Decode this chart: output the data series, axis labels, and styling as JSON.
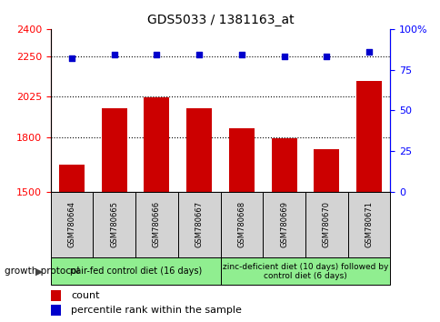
{
  "title": "GDS5033 / 1381163_at",
  "samples": [
    "GSM780664",
    "GSM780665",
    "GSM780666",
    "GSM780667",
    "GSM780668",
    "GSM780669",
    "GSM780670",
    "GSM780671"
  ],
  "counts": [
    1650,
    1960,
    2020,
    1960,
    1850,
    1795,
    1735,
    2110
  ],
  "percentiles": [
    82,
    84,
    84,
    84,
    84,
    83,
    83,
    86
  ],
  "ylim_left": [
    1500,
    2400
  ],
  "ylim_right": [
    0,
    100
  ],
  "yticks_left": [
    1500,
    1800,
    2025,
    2250,
    2400
  ],
  "yticks_right": [
    0,
    25,
    50,
    75,
    100
  ],
  "bar_color": "#cc0000",
  "dot_color": "#0000cc",
  "bar_width": 0.6,
  "group1_label": "pair-fed control diet (16 days)",
  "group2_label": "zinc-deficient diet (10 days) followed by\ncontrol diet (6 days)",
  "group1_indices": [
    0,
    1,
    2,
    3
  ],
  "group2_indices": [
    4,
    5,
    6,
    7
  ],
  "group_bg": "#90ee90",
  "sample_bg": "#d3d3d3",
  "legend_count_color": "#cc0000",
  "legend_pct_color": "#0000cc",
  "xlabel_protocol": "growth protocol",
  "dotted_line_color": "#000000",
  "grid_linestyle": ":",
  "grid_linewidth": 0.8,
  "title_fontsize": 10,
  "tick_fontsize": 8,
  "sample_fontsize": 6,
  "group_fontsize": 7,
  "legend_fontsize": 8
}
